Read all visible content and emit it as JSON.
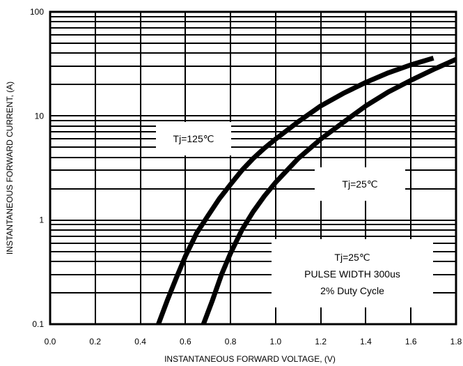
{
  "chart_data": {
    "type": "line",
    "title": "",
    "xlabel": "INSTANTANEOUS FORWARD VOLTAGE, (V)",
    "ylabel": "INSTANTANEOUS FORWARD CURRENT, (A)",
    "xlim": [
      0.0,
      1.8
    ],
    "ylim": [
      0.1,
      100
    ],
    "yscale": "log",
    "grid": true,
    "x_ticks": [
      "0.0",
      "0.2",
      "0.4",
      "0.6",
      "0.8",
      "1.0",
      "1.2",
      "1.4",
      "1.6",
      "1.8"
    ],
    "y_ticks": [
      "0.1",
      "1",
      "10",
      "100"
    ],
    "series": [
      {
        "name": "Tj=125℃",
        "x": [
          0.48,
          0.52,
          0.56,
          0.6,
          0.65,
          0.7,
          0.75,
          0.8,
          0.85,
          0.9,
          0.95,
          1.0,
          1.1,
          1.2,
          1.3,
          1.4,
          1.5,
          1.6,
          1.7
        ],
        "y": [
          0.1,
          0.17,
          0.28,
          0.45,
          0.75,
          1.1,
          1.6,
          2.2,
          3.0,
          3.9,
          4.9,
          6.0,
          8.8,
          12.5,
          16.5,
          21,
          26,
          31,
          36
        ]
      },
      {
        "name": "Tj=25℃",
        "x": [
          0.68,
          0.72,
          0.76,
          0.8,
          0.85,
          0.9,
          0.95,
          1.0,
          1.1,
          1.2,
          1.3,
          1.4,
          1.5,
          1.6,
          1.7,
          1.8
        ],
        "y": [
          0.1,
          0.17,
          0.3,
          0.48,
          0.8,
          1.2,
          1.7,
          2.3,
          3.9,
          6.0,
          8.7,
          12.5,
          17,
          22,
          28,
          35
        ]
      }
    ],
    "annotations": [
      {
        "text": "Tj=125℃"
      },
      {
        "text": "Tj=25℃"
      },
      {
        "lines": [
          "Tj=25℃",
          "PULSE WIDTH 300us",
          "2% Duty Cycle"
        ]
      }
    ]
  }
}
